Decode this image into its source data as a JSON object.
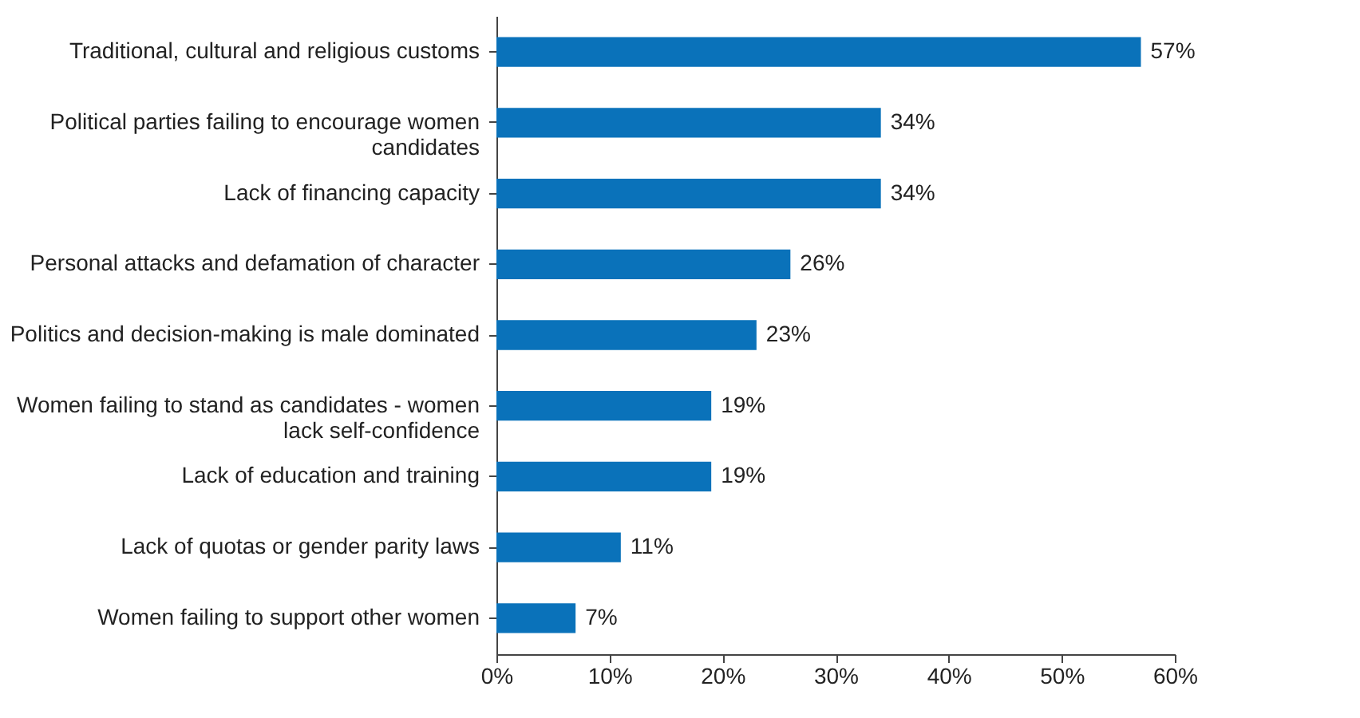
{
  "chart_data": {
    "type": "bar",
    "orientation": "horizontal",
    "categories": [
      "Traditional, cultural and religious customs",
      "Political parties failing to encourage women candidates",
      "Lack of financing capacity",
      "Personal attacks and defamation of character",
      "Politics and decision-making is male dominated",
      "Women failing to stand as candidates - women lack self-confidence",
      "Lack of education and training",
      "Lack of quotas or gender parity laws",
      "Women failing to support other women"
    ],
    "values": [
      57,
      34,
      34,
      26,
      23,
      19,
      19,
      11,
      7
    ],
    "value_labels": [
      "57%",
      "34%",
      "34%",
      "26%",
      "23%",
      "19%",
      "19%",
      "11%",
      "7%"
    ],
    "color": "#0a72ba",
    "xlim": [
      0,
      60
    ],
    "xticks": [
      {
        "value": 0,
        "label": "0%"
      },
      {
        "value": 10,
        "label": "10%"
      },
      {
        "value": 20,
        "label": "20%"
      },
      {
        "value": 30,
        "label": "30%"
      },
      {
        "value": 40,
        "label": "40%"
      },
      {
        "value": 50,
        "label": "50%"
      },
      {
        "value": 60,
        "label": "60%"
      }
    ],
    "grid": false
  }
}
